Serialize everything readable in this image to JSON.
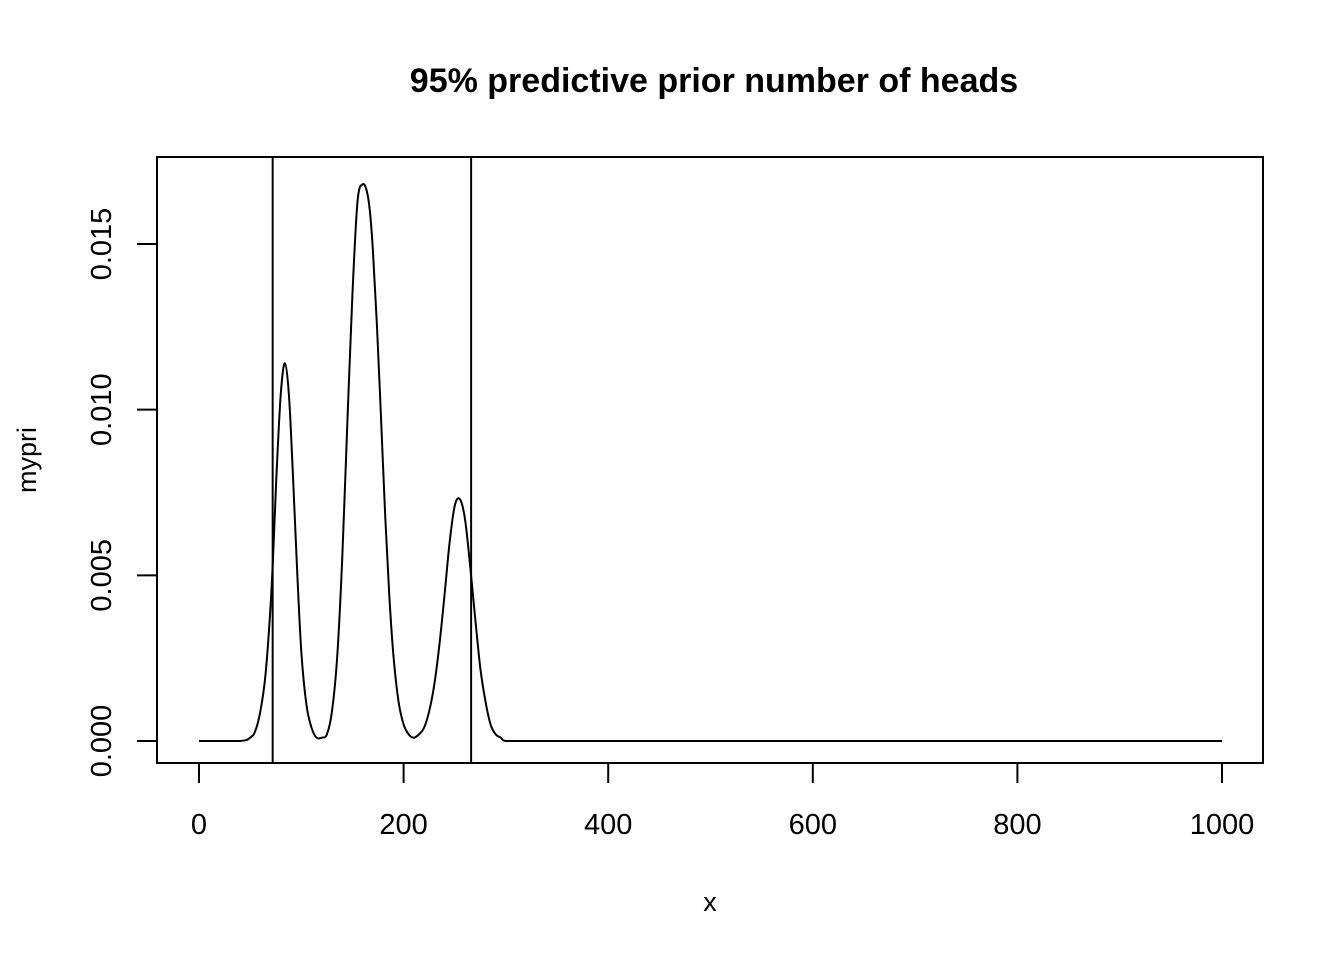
{
  "chart_data": {
    "type": "line",
    "title": "95% predictive prior number of heads",
    "xlabel": "x",
    "ylabel": "mypri",
    "xlim": [
      0,
      1000
    ],
    "ylim": [
      0,
      0.017
    ],
    "x_ticks": [
      {
        "value": 0,
        "label": "0"
      },
      {
        "value": 200,
        "label": "200"
      },
      {
        "value": 400,
        "label": "400"
      },
      {
        "value": 600,
        "label": "600"
      },
      {
        "value": 800,
        "label": "800"
      },
      {
        "value": 1000,
        "label": "1000"
      }
    ],
    "y_ticks": [
      {
        "value": 0,
        "label": "0.000"
      },
      {
        "value": 0.005,
        "label": "0.005"
      },
      {
        "value": 0.01,
        "label": "0.010"
      },
      {
        "value": 0.015,
        "label": "0.015"
      }
    ],
    "grid": false,
    "legend": "none",
    "series": [
      {
        "x": [
          0,
          40,
          50,
          55,
          60,
          65,
          70,
          73,
          76,
          80,
          84,
          88,
          92,
          96,
          100,
          105,
          110,
          115,
          120,
          125,
          130,
          135,
          140,
          145,
          150,
          155,
          160,
          164,
          167,
          170,
          174,
          178,
          182,
          186,
          190,
          195,
          200,
          205,
          210,
          215,
          220,
          225,
          230,
          235,
          240,
          245,
          250,
          255,
          260,
          265,
          270,
          275,
          280,
          285,
          290,
          295,
          300,
          320,
          400,
          500,
          600,
          700,
          800,
          900,
          1000
        ],
        "y": [
          0,
          0,
          0.0001,
          0.0003,
          0.0009,
          0.002,
          0.0041,
          0.006,
          0.0082,
          0.0105,
          0.0114,
          0.0104,
          0.0079,
          0.0051,
          0.0027,
          0.0011,
          0.0004,
          0.0001,
          0.0001,
          0.0002,
          0.0009,
          0.0025,
          0.0055,
          0.0096,
          0.0135,
          0.0163,
          0.0168,
          0.0166,
          0.016,
          0.0148,
          0.0125,
          0.0097,
          0.0068,
          0.0044,
          0.0026,
          0.0012,
          0.0005,
          0.0002,
          0.0001,
          0.0002,
          0.0004,
          0.0009,
          0.0017,
          0.0029,
          0.0044,
          0.006,
          0.0071,
          0.0073,
          0.0067,
          0.0053,
          0.0037,
          0.0022,
          0.0012,
          0.0005,
          0.0002,
          0.0001,
          0,
          0,
          0,
          0,
          0,
          0,
          0,
          0,
          0
        ]
      }
    ],
    "vertical_lines": [
      72,
      266
    ]
  }
}
